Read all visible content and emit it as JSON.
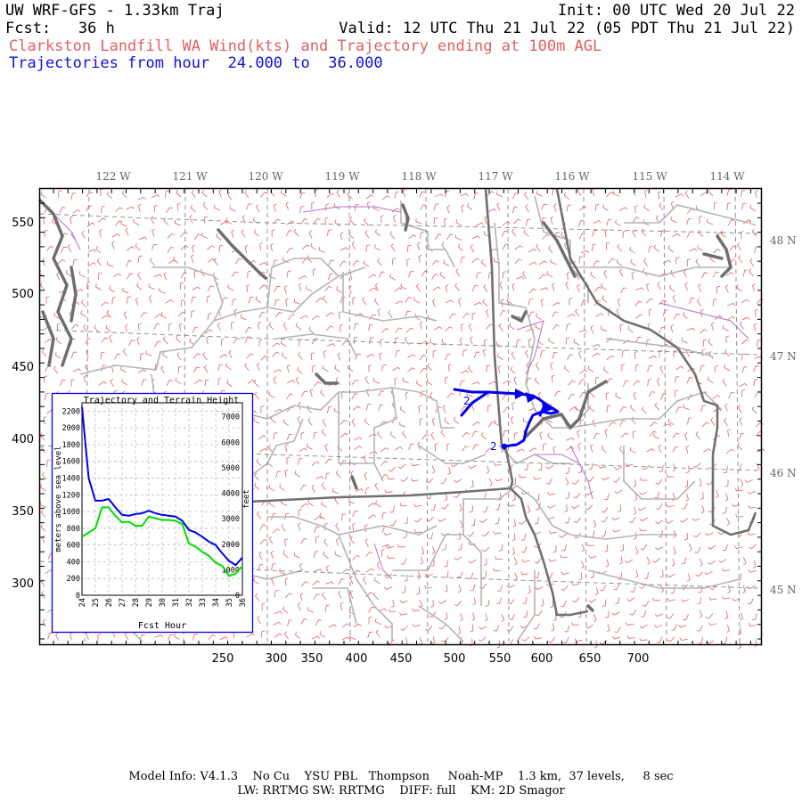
{
  "header": {
    "model": "UW WRF-GFS - 1.33km Traj",
    "init": "Init: 00 UTC Wed 20 Jul 22",
    "fcst": "Fcst:   36 h",
    "valid": "Valid: 12 UTC Thu 21 Jul 22 (05 PDT Thu 21 Jul 22)",
    "product": "Clarkston Landfill WA Wind(kts) and Trajectory ending at 100m AGL",
    "traj_range": "Trajectories from hour  24.000 to  36.000"
  },
  "map": {
    "x_ticks": [
      "250",
      "300",
      "350",
      "400",
      "450",
      "500",
      "550",
      "600",
      "650",
      "700"
    ],
    "y_ticks": [
      "550",
      "500",
      "450",
      "400",
      "350",
      "300"
    ],
    "lon_labels": [
      "122 W",
      "121 W",
      "120 W",
      "119 W",
      "118 W",
      "117 W",
      "116 W",
      "115 W",
      "114 W"
    ],
    "lat_labels": [
      "48 N",
      "47 N",
      "46 N",
      "45 N"
    ],
    "traj_marker_a": "2",
    "traj_marker_b": "2",
    "colors": {
      "wind_barbs": "#e06060",
      "trajectory": "#0000ee",
      "state_border": "#707070",
      "county_border": "#b0b0b0",
      "water": "#707070",
      "lat_lon_grid": "#808080",
      "secondary_border": "#a060c0"
    }
  },
  "inset": {
    "title": "Trajectory and Terrain Height",
    "ylabel_left": "meters above sea level",
    "ylabel_right": "feet",
    "xlabel": "Fcst Hour",
    "left_ticks": [
      "2200",
      "2000",
      "1800",
      "1600",
      "1400",
      "1200",
      "1000",
      "800",
      "600",
      "400",
      "200",
      "0"
    ],
    "right_ticks": [
      "7000",
      "6000",
      "5000",
      "4000",
      "3000",
      "2000",
      "1000",
      "0"
    ],
    "x_ticks": [
      "24",
      "25",
      "26",
      "27",
      "28",
      "29",
      "30",
      "31",
      "32",
      "33",
      "34",
      "35",
      "36"
    ],
    "colors": {
      "trajectory": "#0000ee",
      "terrain": "#00dd00"
    }
  },
  "chart_data": {
    "type": "line",
    "title": "Trajectory and Terrain Height",
    "xlabel": "Fcst Hour",
    "ylabel": "meters above sea level",
    "xlim": [
      24,
      36
    ],
    "ylim": [
      0,
      2300
    ],
    "x": [
      24,
      24.5,
      25,
      25.5,
      26,
      26.5,
      27,
      27.5,
      28,
      28.5,
      29,
      29.5,
      30,
      30.5,
      31,
      31.5,
      32,
      32.5,
      33,
      33.5,
      34,
      34.5,
      35,
      35.5,
      36
    ],
    "series": [
      {
        "values": [
          2250,
          1400,
          1130,
          1130,
          1150,
          1050,
          960,
          950,
          970,
          980,
          1010,
          980,
          960,
          950,
          940,
          890,
          780,
          750,
          700,
          640,
          600,
          500,
          410,
          360,
          450
        ]
      },
      {
        "values": [
          700,
          750,
          800,
          1050,
          1050,
          950,
          870,
          880,
          830,
          830,
          940,
          920,
          900,
          900,
          890,
          850,
          620,
          580,
          520,
          470,
          390,
          350,
          230,
          260,
          350
        ]
      }
    ]
  },
  "footer": {
    "line1": "Model Info: V4.1.3    No Cu    YSU PBL   Thompson     Noah-MP    1.3 km,  37 levels,     8 sec",
    "line2": "LW: RRTMG SW: RRTMG    DIFF: full    KM: 2D Smagor"
  }
}
